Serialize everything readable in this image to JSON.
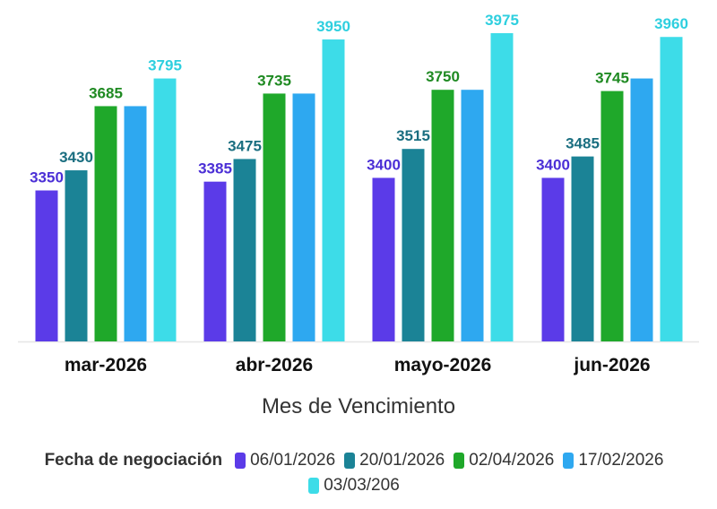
{
  "chart_data": {
    "type": "bar",
    "title": "",
    "xlabel": "Mes de Vencimiento",
    "ylabel": "",
    "ylim": [
      2750,
      4000
    ],
    "categories": [
      "mar-2026",
      "abr-2026",
      "mayo-2026",
      "jun-2026"
    ],
    "legend_title": "Fecha de negociación",
    "series": [
      {
        "name": "06/01/2026",
        "color": "#5B3BE8",
        "values": [
          3350,
          3385,
          3400,
          3400
        ],
        "labels": [
          "3350",
          "3385",
          "3400",
          "3400"
        ]
      },
      {
        "name": "20/01/2026",
        "color": "#1B8396",
        "values": [
          3430,
          3475,
          3515,
          3485
        ],
        "labels": [
          "3430",
          "3475",
          "3515",
          "3485"
        ]
      },
      {
        "name": "02/04/2026",
        "color": "#1FA82A",
        "values": [
          3685,
          3735,
          3750,
          3745
        ],
        "labels": [
          "3685",
          "3735",
          "3750",
          "3745"
        ]
      },
      {
        "name": "17/02/2026",
        "color": "#2EA8F0",
        "values": [
          3685,
          3735,
          3750,
          3795
        ],
        "labels": [
          "",
          "",
          "",
          ""
        ]
      },
      {
        "name": "03/03/206",
        "color": "#3DDCE8",
        "values": [
          3795,
          3950,
          3975,
          3960
        ],
        "labels": [
          "3795",
          "3950",
          "3975",
          "3960"
        ]
      }
    ],
    "label_colors": [
      "#4B2FD6",
      "#1A6E80",
      "#1F8A22",
      "#2EA8F0",
      "#2ECFDF"
    ]
  }
}
